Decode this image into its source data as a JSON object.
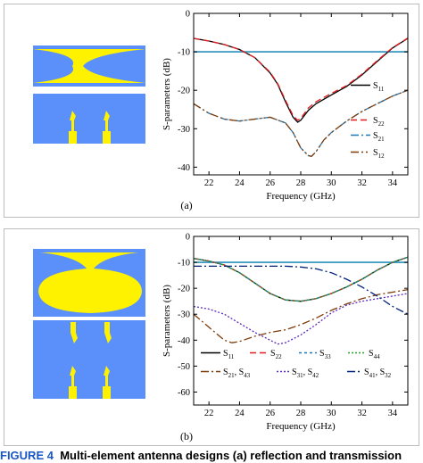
{
  "colors": {
    "antenna_background": "#5b8ff9",
    "antenna_metal": "#fff200",
    "s11": "#000000",
    "s22": "#e41a1c",
    "s21_panel_a": "#1f78b4",
    "s12": "#7f3b08",
    "threshold": "#2a8fbd",
    "s33_s44": "#2ca02c",
    "s31_s42": "#5a2bbd",
    "s41_s32": "#00207a"
  },
  "panels": [
    {
      "label": "(a)",
      "chart_data": {
        "type": "line",
        "xlabel": "Frequency (GHz)",
        "ylabel": "S-parameters (dB)",
        "xlim": [
          21,
          35
        ],
        "ylim": [
          -42,
          0
        ],
        "xticks": [
          "22",
          "24",
          "26",
          "28",
          "30",
          "32",
          "34"
        ],
        "yticks": [
          "0",
          "-10",
          "-20",
          "-30",
          "-40"
        ],
        "threshold_db": -10,
        "legend_position": "lower-right",
        "series": [
          {
            "name": "S11",
            "name_main": "S",
            "name_sub": "11",
            "color": "#000000",
            "dash": "solid",
            "x": [
              21,
              22,
              23,
              24,
              25,
              26,
              26.5,
              27,
              27.5,
              27.8,
              28,
              28.5,
              29,
              30,
              31,
              32,
              33,
              34,
              35
            ],
            "y": [
              -6.5,
              -7.2,
              -8.1,
              -9.4,
              -11.5,
              -15.5,
              -18.5,
              -23,
              -27,
              -28.3,
              -27.8,
              -25.2,
              -23.5,
              -21.2,
              -19,
              -16,
              -12.5,
              -9,
              -6.5
            ]
          },
          {
            "name": "S22",
            "name_main": "S",
            "name_sub": "22",
            "color": "#e41a1c",
            "dash": "7,4",
            "x": [
              21,
              22,
              23,
              24,
              25,
              26,
              26.5,
              27,
              27.5,
              27.8,
              28,
              28.5,
              29,
              30,
              31,
              32,
              33,
              34,
              35
            ],
            "y": [
              -6.5,
              -7.2,
              -8.1,
              -9.4,
              -11.5,
              -15.3,
              -18.3,
              -22.6,
              -26.6,
              -27.8,
              -27.3,
              -24.6,
              -23,
              -20.8,
              -18.8,
              -15.8,
              -12.3,
              -8.9,
              -6.4
            ]
          },
          {
            "name": "S21",
            "name_main": "S",
            "name_sub": "21",
            "color": "#1f78b4",
            "dash": "9,3,2,3",
            "x": [
              21,
              22,
              23,
              24,
              25,
              26,
              27,
              27.5,
              28,
              28.5,
              28.7,
              29,
              29.5,
              30,
              31,
              32,
              33,
              34,
              35
            ],
            "y": [
              -23.5,
              -26,
              -27.5,
              -28,
              -27.5,
              -27,
              -28.5,
              -31,
              -35,
              -37,
              -37.2,
              -36,
              -33,
              -31,
              -28,
              -25.5,
              -23.5,
              -21.5,
              -20
            ]
          },
          {
            "name": "S12",
            "name_main": "S",
            "name_sub": "12",
            "color": "#7f3b08",
            "dash": "9,3,2,3,2,3",
            "x": [
              21,
              22,
              23,
              24,
              25,
              26,
              27,
              27.5,
              28,
              28.5,
              28.7,
              29,
              29.5,
              30,
              31,
              32,
              33,
              34,
              35
            ],
            "y": [
              -23.5,
              -26,
              -27.5,
              -28,
              -27.5,
              -27,
              -28.5,
              -31,
              -35,
              -37,
              -37.2,
              -36,
              -33,
              -31,
              -28,
              -25.5,
              -23.5,
              -21.5,
              -20
            ]
          }
        ]
      }
    },
    {
      "label": "(b)",
      "chart_data": {
        "type": "line",
        "xlabel": "Frequency (GHz)",
        "ylabel": "S-parameters (dB)",
        "xlim": [
          21,
          35
        ],
        "ylim": [
          -65,
          0
        ],
        "xticks": [
          "22",
          "24",
          "26",
          "28",
          "30",
          "32",
          "34"
        ],
        "yticks": [
          "0",
          "-10",
          "-20",
          "-30",
          "-40",
          "-50",
          "-60"
        ],
        "threshold_db": -10,
        "legend_position": "lower-center",
        "series": [
          {
            "name": "S11",
            "name_main": "S",
            "name_sub": "11",
            "color": "#000000",
            "dash": "solid",
            "x": [
              21,
              22,
              23,
              24,
              25,
              26,
              27,
              28,
              29,
              30,
              31,
              32,
              33,
              34,
              35
            ],
            "y": [
              -8.5,
              -9.5,
              -11,
              -14,
              -18,
              -22,
              -24.5,
              -25,
              -24,
              -22,
              -19.5,
              -16.5,
              -13,
              -10,
              -8
            ]
          },
          {
            "name": "S22",
            "name_main": "S",
            "name_sub": "22",
            "color": "#e41a1c",
            "dash": "7,4",
            "x": [
              21,
              22,
              23,
              24,
              25,
              26,
              27,
              28,
              29,
              30,
              31,
              32,
              33,
              34,
              35
            ],
            "y": [
              -8.5,
              -9.5,
              -11,
              -14,
              -18,
              -22,
              -24.5,
              -25,
              -24,
              -22,
              -19.5,
              -16.5,
              -13,
              -10,
              -8
            ]
          },
          {
            "name": "S33",
            "name_main": "S",
            "name_sub": "33",
            "color": "#1f78b4",
            "dash": "3,3",
            "x": [
              21,
              22,
              23,
              24,
              25,
              26,
              27,
              28,
              29,
              30,
              31,
              32,
              33,
              34,
              35
            ],
            "y": [
              -8.5,
              -9.5,
              -11,
              -14,
              -18,
              -22,
              -24.5,
              -25,
              -24,
              -22,
              -19.5,
              -16.5,
              -13,
              -10,
              -8
            ]
          },
          {
            "name": "S44",
            "name_main": "S",
            "name_sub": "44",
            "color": "#2ca02c",
            "dash": "2,2",
            "x": [
              21,
              22,
              23,
              24,
              25,
              26,
              27,
              28,
              29,
              30,
              31,
              32,
              33,
              34,
              35
            ],
            "y": [
              -8.5,
              -9.5,
              -11,
              -14,
              -18,
              -22,
              -24.5,
              -25,
              -24,
              -22,
              -19.5,
              -16.5,
              -13,
              -10,
              -8
            ]
          },
          {
            "name": "S21, S43",
            "name_main": "S",
            "name_sub": "21",
            "name_sep": ", S",
            "name_sub2": "43",
            "color": "#7f3b08",
            "dash": "9,3,2,3",
            "x": [
              21,
              22,
              23,
              23.5,
              24,
              25,
              26,
              27,
              28,
              29,
              30,
              31,
              32,
              33,
              34,
              35
            ],
            "y": [
              -30,
              -35,
              -40,
              -41,
              -40.5,
              -38.5,
              -37,
              -36,
              -34,
              -31.5,
              -28.5,
              -26,
              -24,
              -22.5,
              -21.5,
              -20.5
            ]
          },
          {
            "name": "S31, S42",
            "name_main": "S",
            "name_sub": "31",
            "name_sep": ", S",
            "name_sub2": "42",
            "color": "#5a2bbd",
            "dash": "2,2",
            "x": [
              21,
              22,
              23,
              24,
              25,
              26,
              26.5,
              27,
              28,
              29,
              30,
              31,
              32,
              33,
              34,
              35
            ],
            "y": [
              -27,
              -28,
              -30,
              -33.5,
              -37,
              -40,
              -41.5,
              -41,
              -38,
              -34,
              -29.5,
              -26.5,
              -25,
              -24,
              -23,
              -22
            ]
          },
          {
            "name": "S41, S32",
            "name_main": "S",
            "name_sub": "41",
            "name_sep": ", S",
            "name_sub2": "32",
            "color": "#00207a",
            "dash": "9,3,2,3",
            "x": [
              21,
              22,
              23,
              24,
              25,
              26,
              27,
              28,
              29,
              30,
              31,
              32,
              33,
              34,
              35
            ],
            "y": [
              -11.5,
              -11.5,
              -11.5,
              -11.5,
              -11.5,
              -11.5,
              -11.5,
              -11.8,
              -12.5,
              -14,
              -16.5,
              -19.5,
              -23,
              -27,
              -30
            ]
          }
        ]
      }
    }
  ],
  "caption": {
    "figure_label": "FIGURE 4",
    "text": "Multi-element antenna designs (a) reflection and transmission"
  }
}
